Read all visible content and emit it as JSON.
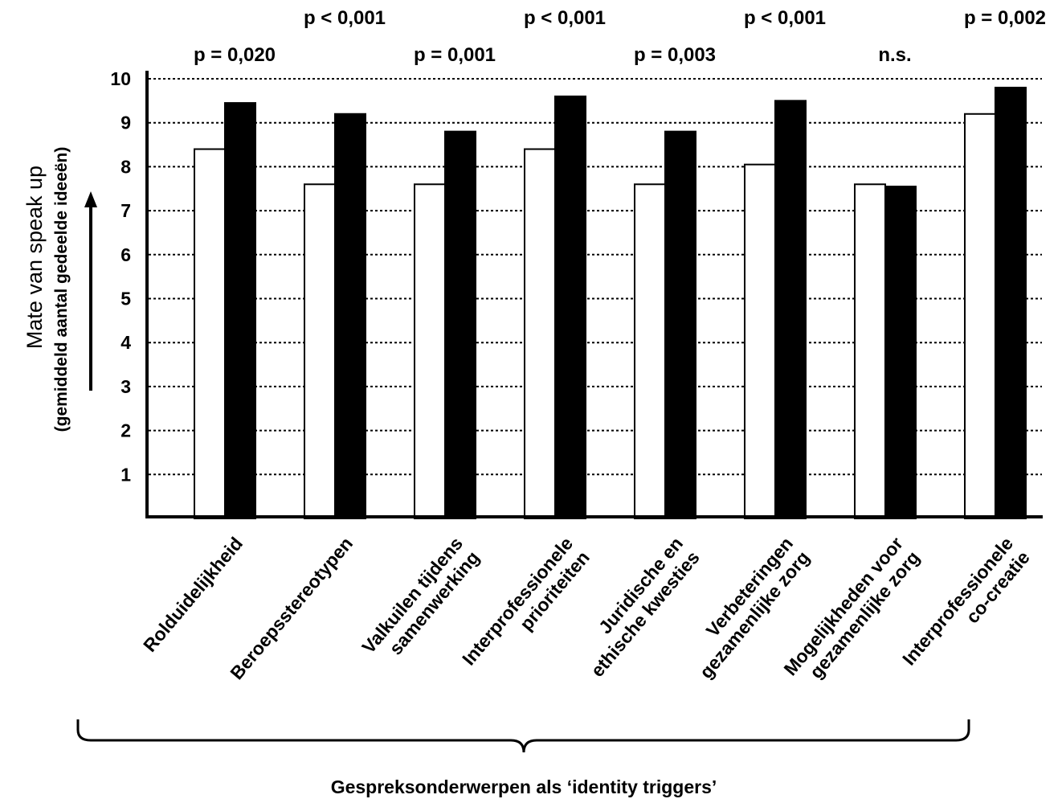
{
  "chart_data": {
    "type": "bar",
    "categories": [
      [
        "Rolduidelijkheid"
      ],
      [
        "Beroepsstereotypen"
      ],
      [
        "Valkuilen tijdens",
        "samenwerking"
      ],
      [
        "Interprofessionele",
        "prioriteiten"
      ],
      [
        "Juridische en",
        "ethische kwesties"
      ],
      [
        "Verbeteringen",
        "gezamenlijke zorg"
      ],
      [
        "Mogelijkheden voor",
        "gezamenlijke zorg"
      ],
      [
        "Interprofessionele",
        "co-creatie"
      ]
    ],
    "series": [
      {
        "fill": "#ffffff",
        "values": [
          8.4,
          7.6,
          7.6,
          8.4,
          7.6,
          8.05,
          7.6,
          9.2
        ]
      },
      {
        "fill": "#000000",
        "values": [
          9.45,
          9.2,
          8.8,
          9.6,
          8.8,
          9.5,
          7.55,
          9.8
        ]
      }
    ],
    "p_values": [
      "p = 0,020",
      "p < 0,001",
      "p = 0,001",
      "p < 0,001",
      "p = 0,003",
      "p < 0,001",
      "n.s.",
      "p = 0,002"
    ],
    "yticks": [
      "1",
      "2",
      "3",
      "4",
      "5",
      "6",
      "7",
      "8",
      "9",
      "10"
    ],
    "ylim": [
      0,
      10
    ],
    "ylabel": "Mate van speak up",
    "ylabel_sub": "(gemiddeld aantal gedeelde ideeën)",
    "xlabel": "Gespreksonderwerpen als ‘identity triggers’",
    "grid": true,
    "grid_style": "dotted"
  }
}
